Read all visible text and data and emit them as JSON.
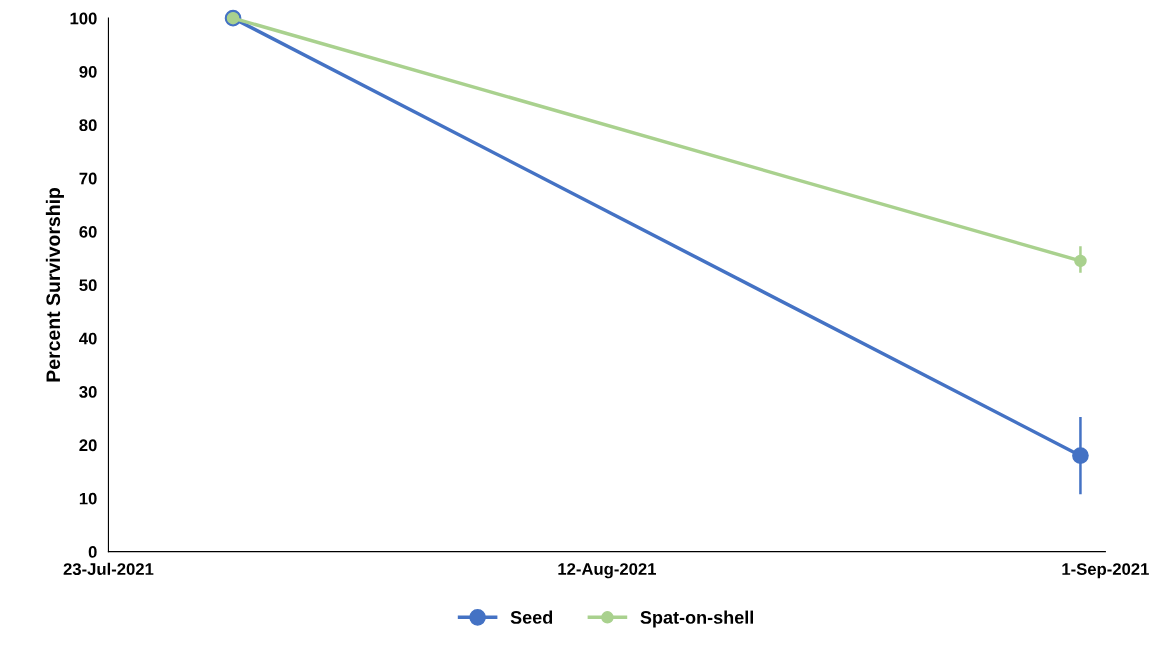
{
  "chart_data": {
    "type": "line",
    "ylabel": "Percent Survivorship",
    "series": [
      {
        "name": "Seed",
        "color": "#4472c4",
        "x": [
          "2021-07-28",
          "2021-08-31"
        ],
        "values": [
          100,
          18
        ],
        "errors": [
          null,
          [
            11,
            25
          ]
        ]
      },
      {
        "name": "Spat-on-shell",
        "color": "#a9d18e",
        "x": [
          "2021-07-28",
          "2021-08-31"
        ],
        "values": [
          100,
          54.5
        ],
        "errors": [
          null,
          [
            52.5,
            57
          ]
        ]
      }
    ],
    "xlim": [
      "2021-07-23",
      "2021-09-01"
    ],
    "xticks": [
      {
        "value": "2021-07-23",
        "label": "23-Jul-2021"
      },
      {
        "value": "2021-08-12",
        "label": "12-Aug-2021"
      },
      {
        "value": "2021-09-01",
        "label": "1-Sep-2021"
      }
    ],
    "ylim": [
      0,
      100
    ],
    "yticks": [
      0,
      10,
      20,
      30,
      40,
      50,
      60,
      70,
      80,
      90,
      100
    ],
    "grid": false,
    "legend": "bottom",
    "marker": "circle",
    "line_style": "solid"
  }
}
